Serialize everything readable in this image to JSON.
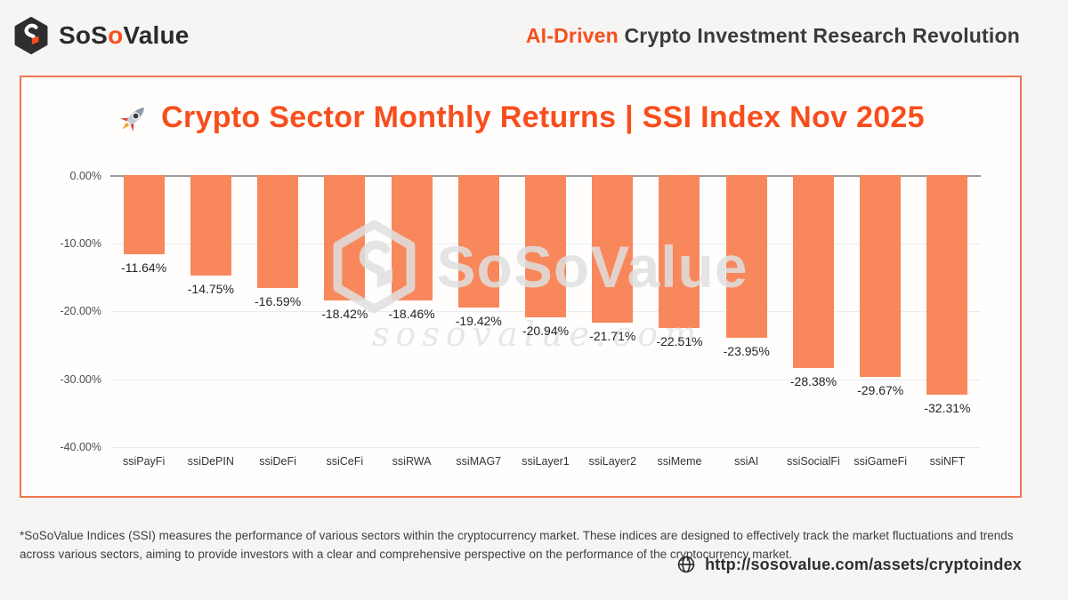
{
  "header": {
    "logo": {
      "part1": "SoS",
      "part2": "o",
      "part3": "Value"
    },
    "tagline_highlight": "AI-Driven",
    "tagline_rest": " Crypto Investment Research Revolution"
  },
  "chart_data": {
    "type": "bar",
    "title": "Crypto Sector Monthly Returns | SSI Index Nov 2025",
    "title_icon": "rocket-emoji",
    "categories": [
      "ssiPayFi",
      "ssiDePIN",
      "ssiDeFi",
      "ssiCeFi",
      "ssiRWA",
      "ssiMAG7",
      "ssiLayer1",
      "ssiLayer2",
      "ssiMeme",
      "ssiAI",
      "ssiSocialFi",
      "ssiGameFi",
      "ssiNFT"
    ],
    "values": [
      -11.64,
      -14.75,
      -16.59,
      -18.42,
      -18.46,
      -19.42,
      -20.94,
      -21.71,
      -22.51,
      -23.95,
      -28.38,
      -29.67,
      -32.31
    ],
    "labels": [
      "-11.64%",
      "-14.75%",
      "-16.59%",
      "-18.42%",
      "-18.46%",
      "-19.42%",
      "-20.94%",
      "-21.71%",
      "-22.51%",
      "-23.95%",
      "-28.38%",
      "-29.67%",
      "-32.31%"
    ],
    "yticks": [
      "0.00%",
      "-10.00%",
      "-20.00%",
      "-30.00%",
      "-40.00%"
    ],
    "ylim": [
      -40,
      0
    ],
    "xlabel": "",
    "ylabel": "",
    "grid": true,
    "legend": false,
    "bar_color": "#f8875c",
    "title_color": "#f84e1d"
  },
  "watermark": {
    "brand": "SoSoValue",
    "domain": "sosovalue.com"
  },
  "footer": {
    "disclaimer": "*SoSoValue Indices (SSI) measures the performance of various sectors within the cryptocurrency market. These indices are designed to effectively track the market fluctuations and trends across various sectors, aiming to provide investors with a clear and comprehensive perspective on the performance of the cryptocurrency market.",
    "url": "http://sosovalue.com/assets/cryptoindex"
  }
}
